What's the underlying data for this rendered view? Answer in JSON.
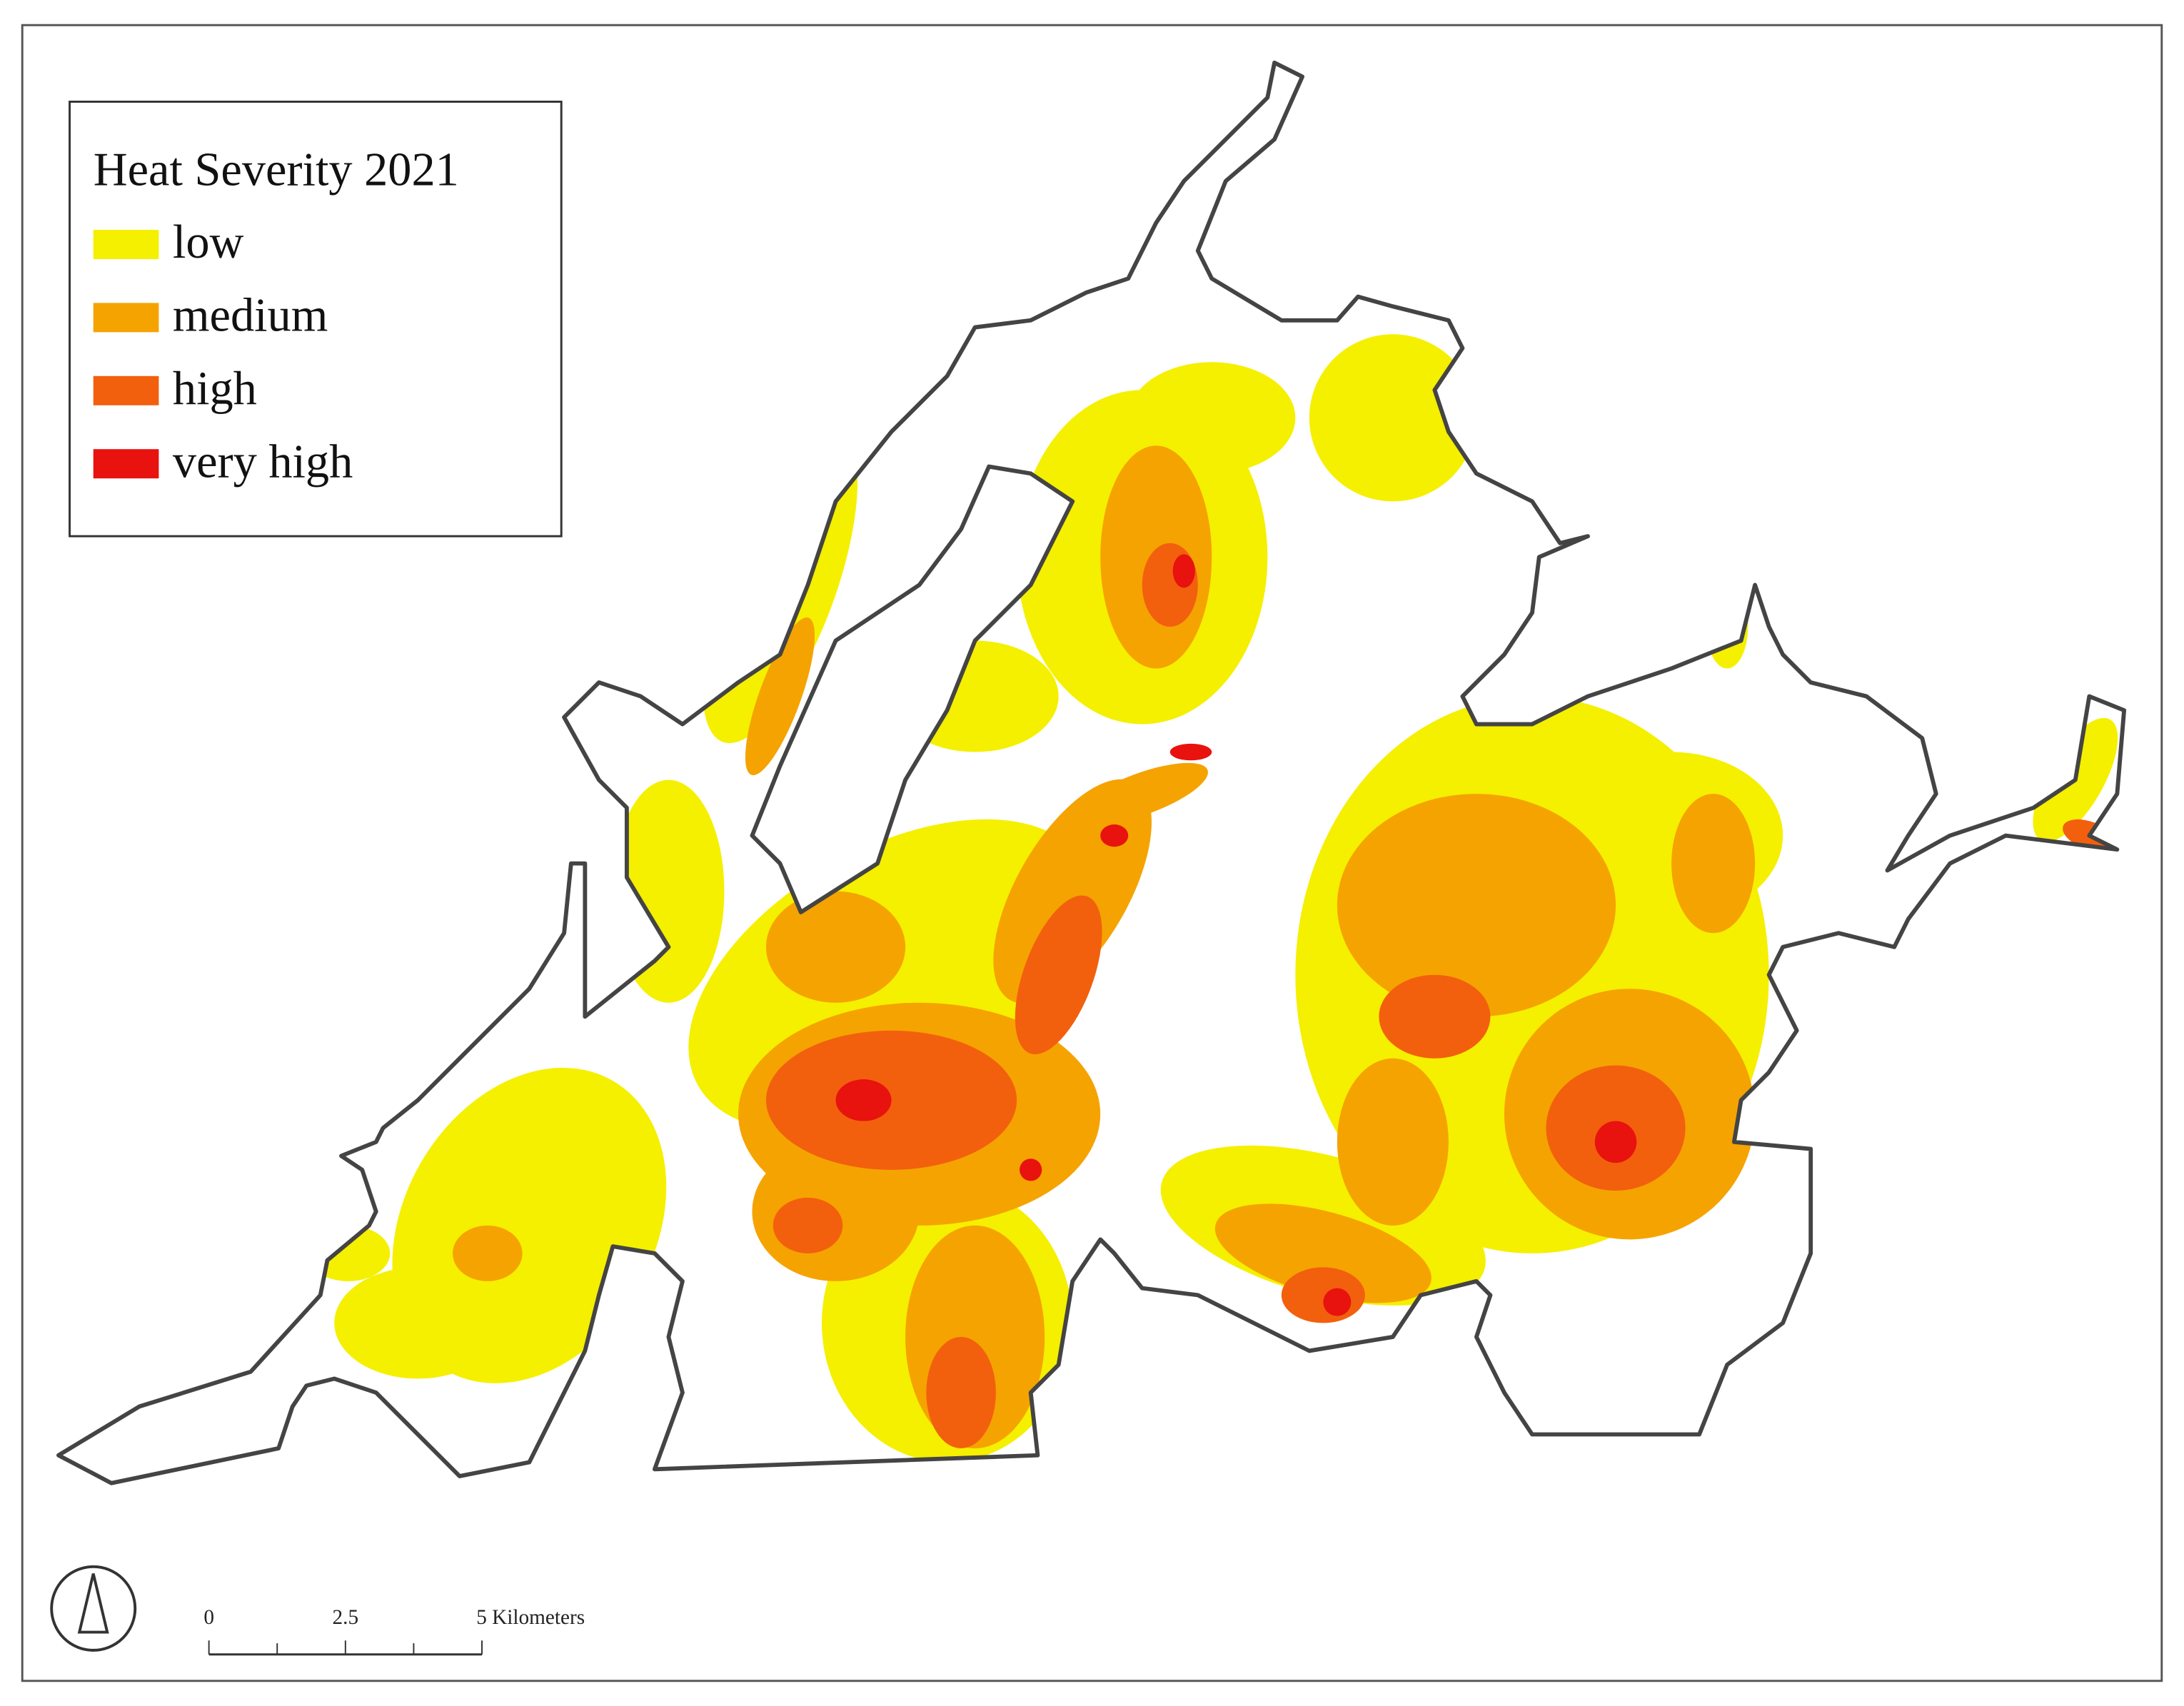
{
  "legend": {
    "title": "Heat Severity 2021",
    "items": [
      {
        "label": "low",
        "color": "#f5ef00"
      },
      {
        "label": "medium",
        "color": "#f5a300"
      },
      {
        "label": "high",
        "color": "#f2600e"
      },
      {
        "label": "very high",
        "color": "#e8120f"
      }
    ]
  },
  "scale_bar": {
    "labels": [
      "0",
      "2.5",
      "5 Kilometers"
    ]
  }
}
